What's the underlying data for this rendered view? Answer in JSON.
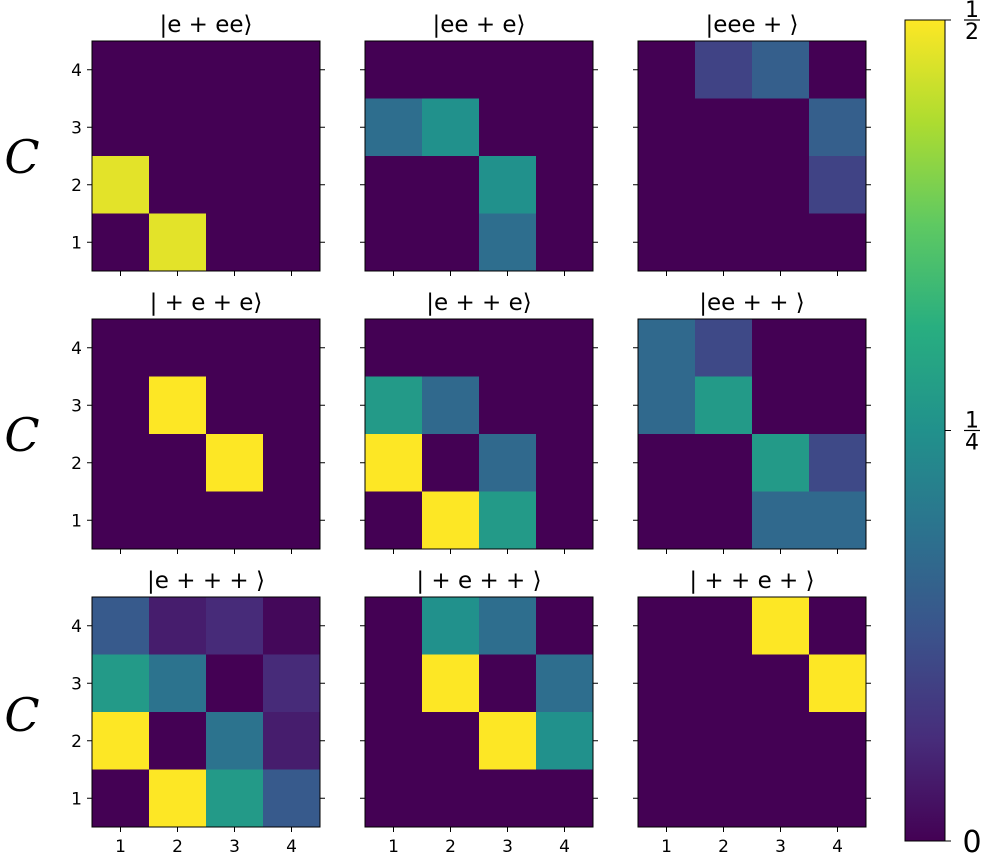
{
  "chart_data": {
    "type": "heatmap",
    "row_label": "C",
    "x_ticks": [
      "1",
      "2",
      "3",
      "4"
    ],
    "y_ticks": [
      "1",
      "2",
      "3",
      "4"
    ],
    "colorbar": {
      "min": 0,
      "max": 0.5,
      "ticks": [
        {
          "value": 0.5,
          "num": "1",
          "den": "2"
        },
        {
          "value": 0.25,
          "num": "1",
          "den": "4"
        },
        {
          "value": 0,
          "label": "0"
        }
      ],
      "colormap": "viridis"
    },
    "panels": [
      {
        "title": "|e + ee⟩",
        "matrix": [
          [
            0,
            0,
            0,
            0
          ],
          [
            0,
            0,
            0,
            0
          ],
          [
            0.48,
            0,
            0,
            0
          ],
          [
            0,
            0.48,
            0,
            0
          ]
        ]
      },
      {
        "title": "|ee + e⟩",
        "matrix": [
          [
            0,
            0,
            0,
            0
          ],
          [
            0.18,
            0.25,
            0,
            0
          ],
          [
            0,
            0,
            0.25,
            0
          ],
          [
            0,
            0,
            0.18,
            0
          ]
        ]
      },
      {
        "title": "|eee + ⟩",
        "matrix": [
          [
            0,
            0.1,
            0.15,
            0
          ],
          [
            0,
            0,
            0,
            0.15
          ],
          [
            0,
            0,
            0,
            0.1
          ],
          [
            0,
            0,
            0,
            0
          ]
        ]
      },
      {
        "title": "| + e + e⟩",
        "matrix": [
          [
            0,
            0,
            0,
            0
          ],
          [
            0,
            0.5,
            0,
            0
          ],
          [
            0,
            0,
            0.5,
            0
          ],
          [
            0,
            0,
            0,
            0
          ]
        ]
      },
      {
        "title": "|e +  + e⟩",
        "matrix": [
          [
            0,
            0,
            0,
            0
          ],
          [
            0.27,
            0.17,
            0,
            0
          ],
          [
            0.5,
            0,
            0.17,
            0
          ],
          [
            0,
            0.5,
            0.27,
            0
          ]
        ]
      },
      {
        "title": "|ee +  + ⟩",
        "matrix": [
          [
            0.17,
            0.11,
            0,
            0
          ],
          [
            0.17,
            0.27,
            0,
            0
          ],
          [
            0,
            0,
            0.27,
            0.11
          ],
          [
            0,
            0,
            0.17,
            0.17
          ]
        ]
      },
      {
        "title": "|e +  +  + ⟩",
        "matrix": [
          [
            0.14,
            0.04,
            0.06,
            0.01
          ],
          [
            0.27,
            0.19,
            0,
            0.06
          ],
          [
            0.5,
            0,
            0.19,
            0.04
          ],
          [
            0,
            0.5,
            0.27,
            0.14
          ]
        ]
      },
      {
        "title": "| + e +  + ⟩",
        "matrix": [
          [
            0,
            0.25,
            0.18,
            0
          ],
          [
            0,
            0.5,
            0,
            0.18
          ],
          [
            0,
            0,
            0.5,
            0.25
          ],
          [
            0,
            0,
            0,
            0
          ]
        ]
      },
      {
        "title": "| +  + e + ⟩",
        "matrix": [
          [
            0,
            0,
            0.5,
            0
          ],
          [
            0,
            0,
            0,
            0.5
          ],
          [
            0,
            0,
            0,
            0
          ],
          [
            0,
            0,
            0,
            0
          ]
        ]
      }
    ]
  }
}
